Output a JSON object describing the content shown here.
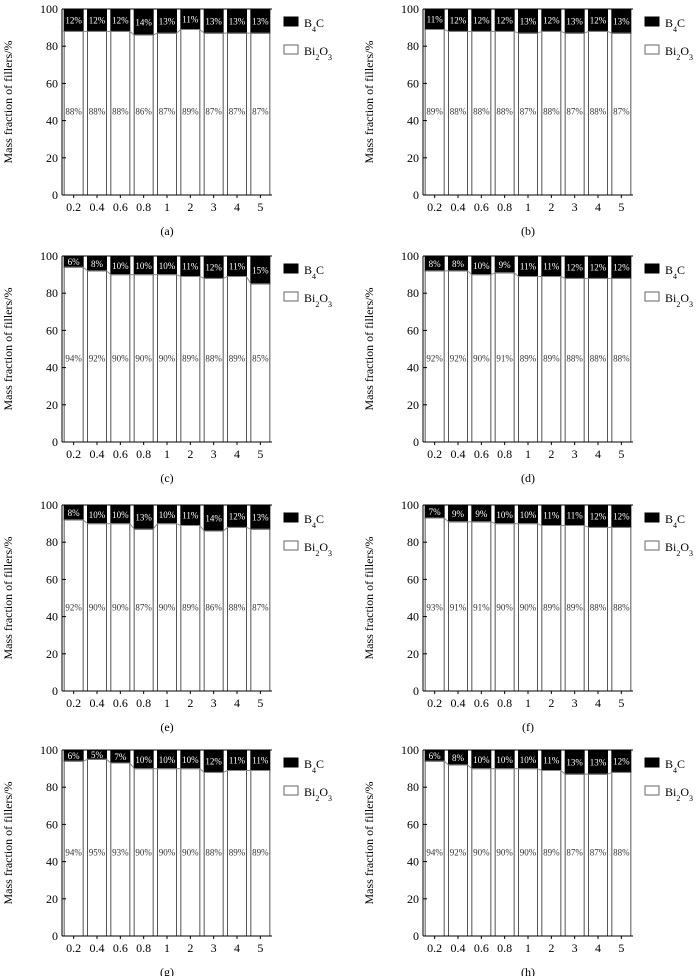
{
  "chart_data": [
    {
      "type": "bar",
      "stacked": true,
      "panel_label": "(a)",
      "categories": [
        "0.2",
        "0.4",
        "0.6",
        "0.8",
        "1",
        "2",
        "3",
        "4",
        "5"
      ],
      "series": [
        {
          "name": "Bi2O3",
          "values": [
            88,
            88,
            88,
            86,
            87,
            89,
            87,
            87,
            87
          ],
          "labels": [
            "88%",
            "88%",
            "88%",
            "86%",
            "87%",
            "89%",
            "87%",
            "87%",
            "87%"
          ]
        },
        {
          "name": "B4C",
          "values": [
            12,
            12,
            12,
            14,
            13,
            11,
            13,
            13,
            13
          ],
          "labels": [
            "12%",
            "12%",
            "12%",
            "14%",
            "13%",
            "11%",
            "13%",
            "13%",
            "13%"
          ]
        }
      ],
      "ylabel": "Mass fraction of fillers/%",
      "ylim": [
        0,
        100
      ],
      "yticks": [
        "0",
        "20",
        "40",
        "60",
        "80",
        "100"
      ],
      "legend_placement": "right"
    },
    {
      "type": "bar",
      "stacked": true,
      "panel_label": "(b)",
      "categories": [
        "0.2",
        "0.4",
        "0.6",
        "0.8",
        "1",
        "2",
        "3",
        "4",
        "5"
      ],
      "series": [
        {
          "name": "Bi2O3",
          "values": [
            89,
            88,
            88,
            88,
            87,
            88,
            87,
            88,
            87
          ],
          "labels": [
            "89%",
            "88%",
            "88%",
            "88%",
            "87%",
            "88%",
            "87%",
            "88%",
            "87%"
          ]
        },
        {
          "name": "B4C",
          "values": [
            11,
            12,
            12,
            12,
            13,
            12,
            13,
            12,
            13
          ],
          "labels": [
            "11%",
            "12%",
            "12%",
            "12%",
            "13%",
            "12%",
            "13%",
            "12%",
            "13%"
          ]
        }
      ],
      "ylabel": "Mass fraction of fillers/%",
      "ylim": [
        0,
        100
      ],
      "yticks": [
        "0",
        "20",
        "40",
        "60",
        "80",
        "100"
      ],
      "legend_placement": "right"
    },
    {
      "type": "bar",
      "stacked": true,
      "panel_label": "(c)",
      "categories": [
        "0.2",
        "0.4",
        "0.6",
        "0.8",
        "1",
        "2",
        "3",
        "4",
        "5"
      ],
      "series": [
        {
          "name": "Bi2O3",
          "values": [
            94,
            92,
            90,
            90,
            90,
            89,
            88,
            89,
            85
          ],
          "labels": [
            "94%",
            "92%",
            "90%",
            "90%",
            "90%",
            "89%",
            "88%",
            "89%",
            "85%"
          ]
        },
        {
          "name": "B4C",
          "values": [
            6,
            8,
            10,
            10,
            10,
            11,
            12,
            11,
            15
          ],
          "labels": [
            "6%",
            "8%",
            "10%",
            "10%",
            "10%",
            "11%",
            "12%",
            "11%",
            "15%"
          ]
        }
      ],
      "ylabel": "Mass fraction of fillers/%",
      "ylim": [
        0,
        100
      ],
      "yticks": [
        "0",
        "20",
        "40",
        "60",
        "80",
        "100"
      ],
      "legend_placement": "right"
    },
    {
      "type": "bar",
      "stacked": true,
      "panel_label": "(d)",
      "categories": [
        "0.2",
        "0.4",
        "0.6",
        "0.8",
        "1",
        "2",
        "3",
        "4",
        "5"
      ],
      "series": [
        {
          "name": "Bi2O3",
          "values": [
            92,
            92,
            90,
            91,
            89,
            89,
            88,
            88,
            88
          ],
          "labels": [
            "92%",
            "92%",
            "90%",
            "91%",
            "89%",
            "89%",
            "88%",
            "88%",
            "88%"
          ]
        },
        {
          "name": "B4C",
          "values": [
            8,
            8,
            10,
            9,
            11,
            11,
            12,
            12,
            12
          ],
          "labels": [
            "8%",
            "8%",
            "10%",
            "9%",
            "11%",
            "11%",
            "12%",
            "12%",
            "12%"
          ]
        }
      ],
      "ylabel": "Mass fraction of fillers/%",
      "ylim": [
        0,
        100
      ],
      "yticks": [
        "0",
        "20",
        "40",
        "60",
        "80",
        "100"
      ],
      "legend_placement": "right"
    },
    {
      "type": "bar",
      "stacked": true,
      "panel_label": "(e)",
      "categories": [
        "0.2",
        "0.4",
        "0.6",
        "0.8",
        "1",
        "2",
        "3",
        "4",
        "5"
      ],
      "series": [
        {
          "name": "Bi2O3",
          "values": [
            92,
            90,
            90,
            87,
            90,
            89,
            86,
            88,
            87
          ],
          "labels": [
            "92%",
            "90%",
            "90%",
            "87%",
            "90%",
            "89%",
            "86%",
            "88%",
            "87%"
          ]
        },
        {
          "name": "B4C",
          "values": [
            8,
            10,
            10,
            13,
            10,
            11,
            14,
            12,
            13
          ],
          "labels": [
            "8%",
            "10%",
            "10%",
            "13%",
            "10%",
            "11%",
            "14%",
            "12%",
            "13%"
          ]
        }
      ],
      "ylabel": "Mass fraction of fillers/%",
      "ylim": [
        0,
        100
      ],
      "yticks": [
        "0",
        "20",
        "40",
        "60",
        "80",
        "100"
      ],
      "legend_placement": "right"
    },
    {
      "type": "bar",
      "stacked": true,
      "panel_label": "(f)",
      "categories": [
        "0.2",
        "0.4",
        "0.6",
        "0.8",
        "1",
        "2",
        "3",
        "4",
        "5"
      ],
      "series": [
        {
          "name": "Bi2O3",
          "values": [
            93,
            91,
            91,
            90,
            90,
            89,
            89,
            88,
            88
          ],
          "labels": [
            "93%",
            "91%",
            "91%",
            "90%",
            "90%",
            "89%",
            "89%",
            "88%",
            "88%"
          ]
        },
        {
          "name": "B4C",
          "values": [
            7,
            9,
            9,
            10,
            10,
            11,
            11,
            12,
            12
          ],
          "labels": [
            "7%",
            "9%",
            "9%",
            "10%",
            "10%",
            "11%",
            "11%",
            "12%",
            "12%"
          ]
        }
      ],
      "ylabel": "Mass fraction of fillers/%",
      "ylim": [
        0,
        100
      ],
      "yticks": [
        "0",
        "20",
        "40",
        "60",
        "80",
        "100"
      ],
      "legend_placement": "right"
    },
    {
      "type": "bar",
      "stacked": true,
      "panel_label": "(g)",
      "categories": [
        "0.2",
        "0.4",
        "0.6",
        "0.8",
        "1",
        "2",
        "3",
        "4",
        "5"
      ],
      "series": [
        {
          "name": "Bi2O3",
          "values": [
            94,
            95,
            93,
            90,
            90,
            90,
            88,
            89,
            89
          ],
          "labels": [
            "94%",
            "95%",
            "93%",
            "90%",
            "90%",
            "90%",
            "88%",
            "89%",
            "89%"
          ]
        },
        {
          "name": "B4C",
          "values": [
            6,
            5,
            7,
            10,
            10,
            10,
            12,
            11,
            11
          ],
          "labels": [
            "6%",
            "5%",
            "7%",
            "10%",
            "10%",
            "10%",
            "12%",
            "11%",
            "11%"
          ]
        }
      ],
      "ylabel": "Mass fraction of fillers/%",
      "ylim": [
        0,
        100
      ],
      "yticks": [
        "0",
        "20",
        "40",
        "60",
        "80",
        "100"
      ],
      "legend_placement": "right"
    },
    {
      "type": "bar",
      "stacked": true,
      "panel_label": "(h)",
      "categories": [
        "0.2",
        "0.4",
        "0.6",
        "0.8",
        "1",
        "2",
        "3",
        "4",
        "5"
      ],
      "series": [
        {
          "name": "Bi2O3",
          "values": [
            94,
            92,
            90,
            90,
            90,
            89,
            87,
            87,
            88
          ],
          "labels": [
            "94%",
            "92%",
            "90%",
            "90%",
            "90%",
            "89%",
            "87%",
            "87%",
            "88%"
          ]
        },
        {
          "name": "B4C",
          "values": [
            6,
            8,
            10,
            10,
            10,
            11,
            13,
            13,
            12
          ],
          "labels": [
            "6%",
            "8%",
            "10%",
            "10%",
            "10%",
            "11%",
            "13%",
            "13%",
            "12%"
          ]
        }
      ],
      "ylabel": "Mass fraction of fillers/%",
      "ylim": [
        0,
        100
      ],
      "yticks": [
        "0",
        "20",
        "40",
        "60",
        "80",
        "100"
      ],
      "legend_placement": "right"
    }
  ],
  "legend": {
    "b4c": {
      "base": "B",
      "sub": "4",
      "rest": "C",
      "color": "#000000"
    },
    "bi2o3": {
      "base": "Bi",
      "sub": "2",
      "rest": "O",
      "sub2": "3",
      "color": "#ffffff"
    }
  }
}
